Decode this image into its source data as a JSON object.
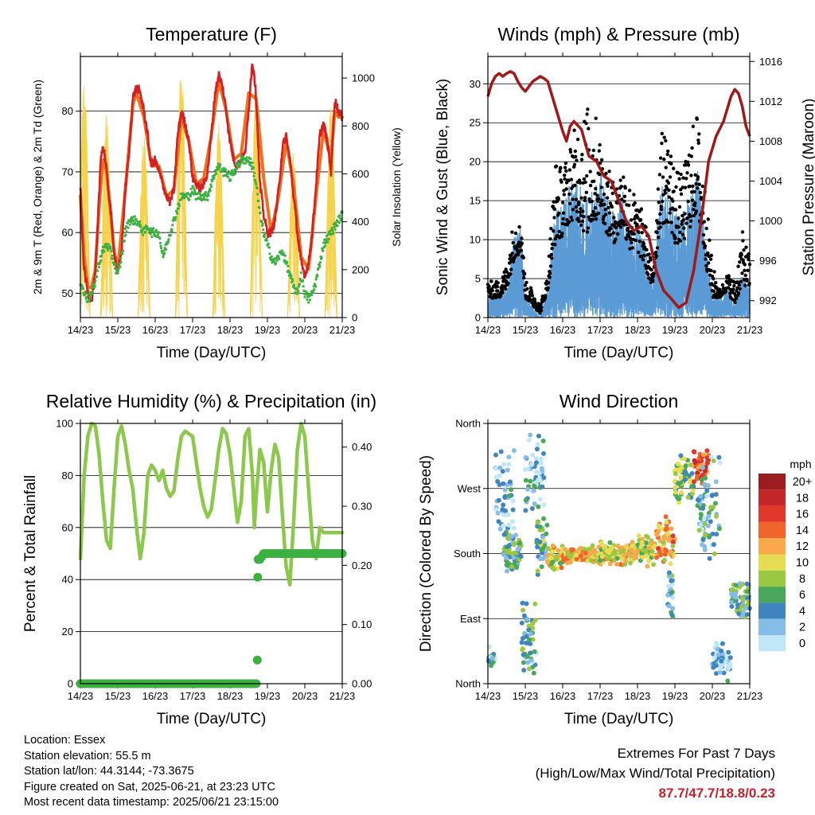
{
  "colors": {
    "temp_red": "#d42020",
    "temp_orange": "#f07020",
    "dewpoint_green": "#3cb040",
    "solar_yellow": "#f5d24a",
    "gust_black": "#000000",
    "wind_blue": "#5b9bd5",
    "pressure_maroon": "#a01818",
    "rh_green": "#8cc84b",
    "precip_green": "#3cb040",
    "extremes_red": "#c8202a"
  },
  "x_ticks": [
    "14/23",
    "15/23",
    "16/23",
    "17/23",
    "18/23",
    "19/23",
    "20/23",
    "21/23"
  ],
  "chart_data": [
    {
      "id": "temperature",
      "type": "line",
      "title": "Temperature (F)",
      "xlabel": "Time (Day/UTC)",
      "ylabel": "2m & 9m T (Red, Orange) & 2m Td (Green)",
      "y2label": "Solar Insolation (Yellow)",
      "ylim": [
        46,
        89
      ],
      "yticks": [
        50,
        60,
        70,
        80
      ],
      "y2lim": [
        0,
        1090
      ],
      "y2ticks": [
        0,
        200,
        400,
        600,
        800,
        1000
      ],
      "grid": "horizontal",
      "xlim": [
        0,
        7
      ],
      "series": [
        {
          "name": "2m T",
          "color": "#d42020",
          "axis": "left",
          "x": [
            0,
            0.05,
            0.1,
            0.2,
            0.3,
            0.4,
            0.5,
            0.55,
            0.6,
            0.65,
            0.7,
            0.8,
            0.9,
            1.0,
            1.1,
            1.2,
            1.3,
            1.4,
            1.5,
            1.6,
            1.7,
            1.75,
            1.8,
            1.85,
            1.9,
            2.0,
            2.1,
            2.2,
            2.3,
            2.4,
            2.5,
            2.6,
            2.7,
            2.8,
            2.9,
            3.0,
            3.1,
            3.2,
            3.3,
            3.4,
            3.5,
            3.6,
            3.7,
            3.8,
            3.9,
            4.0,
            4.1,
            4.2,
            4.3,
            4.4,
            4.5,
            4.55,
            4.6,
            4.65,
            4.7,
            4.75,
            4.8,
            4.9,
            5.0,
            5.1,
            5.2,
            5.3,
            5.4,
            5.5,
            5.6,
            5.7,
            5.8,
            5.9,
            6.0,
            6.1,
            6.2,
            6.3,
            6.4,
            6.5,
            6.6,
            6.7,
            6.8,
            6.9,
            7.0
          ],
          "y": [
            68,
            60,
            54,
            50,
            49,
            53,
            66,
            73,
            74,
            73,
            70,
            64,
            57,
            53,
            57,
            67,
            73,
            82,
            84,
            83,
            80,
            78,
            76,
            73,
            71,
            72,
            70,
            68,
            66,
            65,
            67,
            76,
            80,
            78,
            75,
            69,
            68,
            67,
            68,
            70,
            76,
            83,
            86,
            84,
            80,
            75,
            72,
            71,
            72,
            73,
            80,
            85,
            88,
            86,
            82,
            75,
            68,
            63,
            60,
            60,
            62,
            67,
            74,
            76,
            72,
            66,
            60,
            55,
            53,
            55,
            60,
            68,
            76,
            78,
            75,
            70,
            82,
            80,
            79
          ]
        },
        {
          "name": "9m T",
          "color": "#f07020",
          "axis": "left",
          "x": [
            0,
            0.1,
            0.2,
            0.3,
            0.4,
            0.5,
            0.6,
            0.7,
            0.8,
            0.9,
            1.0,
            1.2,
            1.4,
            1.5,
            1.7,
            1.9,
            2.1,
            2.3,
            2.5,
            2.7,
            2.9,
            3.1,
            3.3,
            3.5,
            3.7,
            3.9,
            4.1,
            4.3,
            4.5,
            4.7,
            4.9,
            5.1,
            5.3,
            5.5,
            5.7,
            5.9,
            6.1,
            6.3,
            6.5,
            6.7,
            6.8,
            6.9,
            7.0
          ],
          "y": [
            66,
            56,
            51,
            51,
            54,
            64,
            72,
            70,
            64,
            57,
            54,
            67,
            81,
            83,
            79,
            71,
            71,
            66,
            67,
            79,
            75,
            68,
            69,
            76,
            85,
            80,
            72,
            73,
            83,
            82,
            69,
            60,
            66,
            75,
            68,
            56,
            54,
            66,
            77,
            72,
            80,
            79,
            79
          ]
        },
        {
          "name": "2m Td",
          "color": "#3cb040",
          "axis": "left",
          "x": [
            0,
            0.1,
            0.2,
            0.3,
            0.4,
            0.5,
            0.6,
            0.7,
            0.8,
            0.9,
            1.0,
            1.1,
            1.2,
            1.3,
            1.4,
            1.5,
            1.6,
            1.7,
            1.8,
            1.9,
            2.0,
            2.1,
            2.2,
            2.3,
            2.4,
            2.5,
            2.6,
            2.7,
            2.8,
            2.9,
            3.0,
            3.1,
            3.2,
            3.3,
            3.4,
            3.5,
            3.6,
            3.7,
            3.8,
            3.9,
            4.0,
            4.1,
            4.2,
            4.3,
            4.4,
            4.5,
            4.6,
            4.7,
            4.8,
            4.9,
            5.0,
            5.1,
            5.2,
            5.3,
            5.4,
            5.5,
            5.6,
            5.7,
            5.8,
            5.9,
            6.0,
            6.1,
            6.2,
            6.3,
            6.4,
            6.5,
            6.6,
            6.7,
            6.8,
            6.9,
            7.0
          ],
          "y": [
            52,
            50,
            49,
            50,
            52,
            55,
            57,
            58,
            57,
            55,
            53,
            56,
            60,
            62,
            62,
            62,
            61,
            60,
            61,
            60,
            60,
            60,
            56,
            58,
            60,
            62,
            64,
            66,
            66,
            66,
            67,
            66,
            66,
            66,
            66,
            68,
            70,
            71,
            70,
            70,
            69,
            70,
            71,
            72,
            72,
            72,
            71,
            68,
            63,
            60,
            58,
            56,
            55,
            56,
            57,
            55,
            53,
            51,
            50,
            53,
            50,
            49,
            50,
            52,
            55,
            58,
            59,
            60,
            61,
            62,
            63
          ]
        }
      ]
    },
    {
      "id": "solar",
      "type": "line",
      "series_name": "Solar Insolation",
      "day_peaks_wm2": [
        1000,
        850,
        780,
        1050,
        820,
        950,
        700,
        900
      ],
      "noon_offsets_days": [
        0.1,
        0.7,
        1.7,
        2.7,
        3.7,
        4.7,
        5.7,
        6.7
      ]
    },
    {
      "id": "winds",
      "type": "scatter",
      "title": "Winds (mph) & Pressure (mb)",
      "xlabel": "Time (Day/UTC)",
      "ylabel": "Sonic Wind & Gust (Blue, Black)",
      "y2label": "Station Pressure (Maroon)",
      "ylim": [
        0,
        33.5
      ],
      "yticks": [
        0,
        5,
        10,
        15,
        20,
        25,
        30
      ],
      "y2lim": [
        990.3,
        1016.5
      ],
      "y2ticks": [
        992,
        996,
        1000,
        1004,
        1008,
        1012,
        1016
      ],
      "grid": "horizontal",
      "xlim": [
        0,
        7
      ],
      "wind_envelope": {
        "x": [
          0,
          0.3,
          0.5,
          0.7,
          0.9,
          1.0,
          1.2,
          1.4,
          1.6,
          1.8,
          2.0,
          2.2,
          2.4,
          2.6,
          2.8,
          3.0,
          3.2,
          3.4,
          3.6,
          3.8,
          4.0,
          4.2,
          4.4,
          4.6,
          4.8,
          5.0,
          5.2,
          5.4,
          5.6,
          5.8,
          6.0,
          6.2,
          6.4,
          6.6,
          6.8,
          7.0
        ],
        "mean": [
          2,
          2,
          3,
          7,
          8,
          2,
          1,
          0,
          3,
          9,
          10,
          12,
          12,
          10,
          11,
          13,
          10,
          9,
          11,
          8,
          8,
          6,
          3,
          11,
          12,
          9,
          9,
          11,
          13,
          7,
          2,
          2,
          3,
          1,
          4,
          3
        ],
        "gust": [
          4,
          4,
          6,
          12,
          11,
          4,
          3,
          1,
          5,
          19,
          18,
          21,
          24,
          25,
          26,
          22,
          18,
          16,
          19,
          16,
          14,
          12,
          5,
          22,
          23,
          18,
          17,
          22,
          25,
          16,
          6,
          3,
          5,
          4,
          10,
          7
        ]
      },
      "pressure": {
        "name": "Station Pressure",
        "color": "#a01818",
        "x": [
          0,
          0.1,
          0.2,
          0.3,
          0.4,
          0.5,
          0.6,
          0.7,
          0.8,
          0.9,
          1.0,
          1.2,
          1.4,
          1.5,
          1.6,
          1.8,
          2.0,
          2.1,
          2.2,
          2.3,
          2.5,
          2.7,
          2.9,
          3.1,
          3.3,
          3.5,
          3.7,
          3.9,
          4.1,
          4.3,
          4.5,
          4.7,
          4.9,
          5.1,
          5.3,
          5.5,
          5.7,
          5.9,
          6.1,
          6.3,
          6.5,
          6.6,
          6.7,
          6.8,
          6.9,
          7.0
        ],
        "y": [
          1012.5,
          1013.8,
          1014.5,
          1014.8,
          1014.5,
          1014.8,
          1015.0,
          1014.8,
          1014.0,
          1013.4,
          1013.0,
          1014.0,
          1014.5,
          1014.3,
          1014.0,
          1011.5,
          1009.0,
          1008.0,
          1009.5,
          1010.0,
          1009.2,
          1006.5,
          1006.0,
          1004.5,
          1004.0,
          1002.0,
          1000.0,
          999.0,
          999.5,
          998.5,
          995.0,
          993.0,
          992.2,
          991.3,
          991.8,
          995.0,
          1000.0,
          1006.0,
          1008.5,
          1010.0,
          1012.5,
          1013.2,
          1012.8,
          1011.5,
          1009.5,
          1008.5
        ]
      }
    },
    {
      "id": "humidity",
      "type": "line",
      "title": "Relative Humidity (%) & Precipitation (in)",
      "xlabel": "Time (Day/UTC)",
      "ylabel": "Percent & Total Rainfall",
      "ylim": [
        0,
        100
      ],
      "yticks": [
        0,
        20,
        40,
        60,
        80,
        100
      ],
      "y2lim": [
        0,
        0.44
      ],
      "y2ticks": [
        "0.00",
        "0.10",
        "0.20",
        "0.30",
        "0.40"
      ],
      "grid": "horizontal",
      "xlim": [
        0,
        7
      ],
      "series": [
        {
          "name": "Relative Humidity",
          "color": "#8cc84b",
          "x": [
            0,
            0.1,
            0.2,
            0.3,
            0.4,
            0.5,
            0.6,
            0.7,
            0.8,
            0.9,
            1.0,
            1.1,
            1.2,
            1.3,
            1.4,
            1.5,
            1.6,
            1.7,
            1.8,
            1.9,
            2.0,
            2.1,
            2.2,
            2.3,
            2.4,
            2.5,
            2.6,
            2.7,
            2.8,
            2.9,
            3.0,
            3.1,
            3.2,
            3.3,
            3.4,
            3.5,
            3.6,
            3.7,
            3.8,
            3.9,
            4.0,
            4.1,
            4.2,
            4.3,
            4.4,
            4.5,
            4.6,
            4.65,
            4.7,
            4.8,
            4.9,
            5.0,
            5.1,
            5.2,
            5.3,
            5.4,
            5.5,
            5.6,
            5.7,
            5.8,
            5.9,
            6.0,
            6.1,
            6.2,
            6.3,
            6.4,
            6.5,
            6.6,
            6.7,
            6.8,
            6.9,
            7.0
          ],
          "y": [
            48,
            80,
            95,
            100,
            99,
            88,
            70,
            55,
            52,
            75,
            95,
            99,
            92,
            82,
            75,
            60,
            48,
            58,
            80,
            84,
            82,
            78,
            82,
            75,
            72,
            74,
            86,
            95,
            97,
            96,
            95,
            85,
            75,
            68,
            64,
            67,
            78,
            90,
            98,
            96,
            88,
            75,
            62,
            70,
            95,
            98,
            80,
            60,
            72,
            90,
            85,
            66,
            82,
            92,
            87,
            65,
            45,
            38,
            62,
            90,
            100,
            95,
            75,
            55,
            48,
            60,
            58,
            58,
            58,
            58,
            58,
            58
          ]
        },
        {
          "name": "Total Rainfall",
          "color": "#3cb040",
          "x": [
            0,
            1,
            2,
            3,
            4,
            4.7,
            4.73,
            4.74,
            4.75,
            4.77,
            4.8,
            4.9,
            5.0,
            5.5,
            6.0,
            6.5,
            7.0
          ],
          "y": [
            0,
            0,
            0,
            0,
            0,
            0,
            0.04,
            0.18,
            0.21,
            0.21,
            0.21,
            0.22,
            0.22,
            0.22,
            0.22,
            0.22,
            0.22
          ]
        }
      ]
    },
    {
      "id": "direction",
      "type": "scatter",
      "title": "Wind Direction",
      "xlabel": "Time (Day/UTC)",
      "ylabel": "Direction (Colored By Speed)",
      "ylim": [
        0,
        360
      ],
      "yticklabels": [
        "North",
        "East",
        "South",
        "West",
        "North"
      ],
      "yticks": [
        0,
        90,
        180,
        270,
        360
      ],
      "grid": "horizontal",
      "xlim": [
        0,
        7
      ],
      "legend": {
        "title": "mph",
        "placement": "right",
        "labels": [
          "20+",
          "18",
          "16",
          "14",
          "12",
          "10",
          "8",
          "6",
          "4",
          "2",
          "0"
        ],
        "colors": [
          "#9b1d1f",
          "#c4272a",
          "#e0392c",
          "#f0652c",
          "#f9a84a",
          "#e7dd54",
          "#9bc841",
          "#49a85a",
          "#3f86c0",
          "#86bde8",
          "#c0e6f8"
        ]
      },
      "segments": [
        {
          "x0": 0.0,
          "x1": 0.2,
          "center": 35,
          "spread": 20,
          "speed": 3
        },
        {
          "x0": 0.2,
          "x1": 0.7,
          "center": 240,
          "spread": 90,
          "speed": 2
        },
        {
          "x0": 0.4,
          "x1": 0.9,
          "center": 180,
          "spread": 30,
          "speed": 5
        },
        {
          "x0": 0.9,
          "x1": 1.3,
          "center": 60,
          "spread": 60,
          "speed": 4
        },
        {
          "x0": 1.0,
          "x1": 1.5,
          "center": 280,
          "spread": 80,
          "speed": 3
        },
        {
          "x0": 1.3,
          "x1": 1.6,
          "center": 190,
          "spread": 40,
          "speed": 6
        },
        {
          "x0": 1.6,
          "x1": 2.0,
          "center": 175,
          "spread": 20,
          "speed": 10
        },
        {
          "x0": 2.0,
          "x1": 3.0,
          "center": 178,
          "spread": 15,
          "speed": 11
        },
        {
          "x0": 3.0,
          "x1": 4.0,
          "center": 180,
          "spread": 18,
          "speed": 10
        },
        {
          "x0": 4.0,
          "x1": 4.5,
          "center": 185,
          "spread": 25,
          "speed": 9
        },
        {
          "x0": 4.5,
          "x1": 5.0,
          "center": 200,
          "spread": 40,
          "speed": 12
        },
        {
          "x0": 4.8,
          "x1": 5.0,
          "center": 120,
          "spread": 50,
          "speed": 4
        },
        {
          "x0": 5.0,
          "x1": 5.5,
          "center": 280,
          "spread": 40,
          "speed": 7
        },
        {
          "x0": 5.5,
          "x1": 5.9,
          "center": 300,
          "spread": 30,
          "speed": 15
        },
        {
          "x0": 5.6,
          "x1": 6.2,
          "center": 240,
          "spread": 80,
          "speed": 4
        },
        {
          "x0": 6.0,
          "x1": 6.5,
          "center": 30,
          "spread": 30,
          "speed": 2
        },
        {
          "x0": 6.5,
          "x1": 7.0,
          "center": 120,
          "spread": 30,
          "speed": 5
        }
      ]
    }
  ],
  "station": {
    "location": "Location: Essex",
    "elevation": "Station elevation: 55.5 m",
    "latlon": "Station lat/lon: 44.3144; -73.3675",
    "created": "Figure created on Sat, 2025-06-21, at 23:23 UTC",
    "timestamp": "Most recent data timestamp: 2025/06/21 23:15:00"
  },
  "extremes": {
    "heading": "Extremes For Past 7 Days",
    "subheading": "(High/Low/Max Wind/Total Precipitation)",
    "values": "87.7/47.7/18.8/0.23"
  }
}
